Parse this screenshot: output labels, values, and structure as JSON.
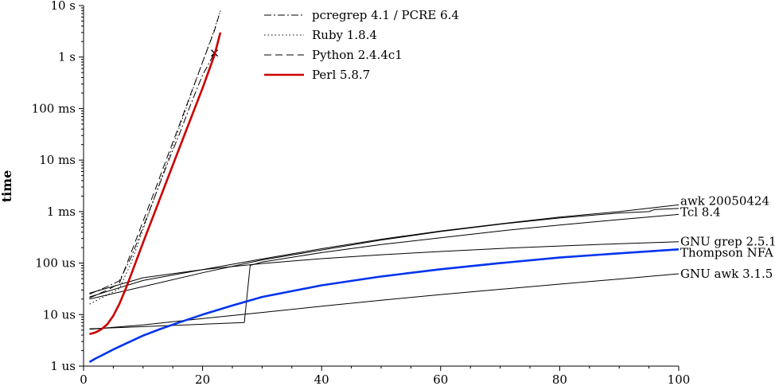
{
  "chart_data": {
    "type": "line",
    "xlabel": "",
    "ylabel": "time",
    "xlim": [
      0,
      100
    ],
    "y_scale": "log",
    "ylim_seconds": [
      1e-06,
      10
    ],
    "x_ticks": [
      0,
      20,
      40,
      60,
      80,
      100
    ],
    "y_ticks": [
      {
        "value": 1e-06,
        "label": "1 us"
      },
      {
        "value": 1e-05,
        "label": "10 us"
      },
      {
        "value": 0.0001,
        "label": "100 us"
      },
      {
        "value": 0.001,
        "label": "1 ms"
      },
      {
        "value": 0.01,
        "label": "10 ms"
      },
      {
        "value": 0.1,
        "label": "100 ms"
      },
      {
        "value": 1,
        "label": "1 s"
      },
      {
        "value": 10,
        "label": "10 s"
      }
    ],
    "grid": false,
    "legend": "top",
    "series": [
      {
        "name": "pcregrep 4.1 / PCRE 6.4",
        "style": "dashdot",
        "color": "#000000",
        "width": 1,
        "in_legend": true,
        "x": [
          1,
          4,
          6,
          8,
          10,
          12,
          14,
          16,
          18,
          20,
          22
        ],
        "y": [
          2.5e-05,
          3.5e-05,
          4.5e-05,
          0.00013,
          0.0005,
          0.002,
          0.008,
          0.03,
          0.12,
          0.45,
          1.2
        ],
        "end_marker": "x"
      },
      {
        "name": "Ruby 1.8.4",
        "style": "dotted",
        "color": "#000000",
        "width": 1,
        "in_legend": true,
        "x": [
          1,
          4,
          6,
          8,
          10,
          12,
          14,
          16,
          18,
          20,
          22,
          23
        ],
        "y": [
          1.6e-05,
          2.4e-05,
          3.2e-05,
          0.0001,
          0.00045,
          0.002,
          0.009,
          0.04,
          0.18,
          0.8,
          3.5,
          8
        ]
      },
      {
        "name": "Python 2.4.4c1",
        "style": "dashed",
        "color": "#000000",
        "width": 1,
        "in_legend": true,
        "x": [
          1,
          4,
          6,
          8,
          10,
          12,
          14,
          16,
          18,
          20,
          22,
          23
        ],
        "y": [
          2.1e-05,
          3e-05,
          4e-05,
          0.00016,
          0.00065,
          0.0026,
          0.011,
          0.045,
          0.19,
          0.8,
          3.3,
          8
        ]
      },
      {
        "name": "Perl 5.8.7",
        "style": "solid",
        "color": "#cc0000",
        "width": 2.6,
        "in_legend": true,
        "x": [
          1,
          2,
          3,
          4,
          5,
          6,
          7,
          8,
          10,
          12,
          14,
          16,
          18,
          20,
          22,
          23
        ],
        "y": [
          4.2e-06,
          4.5e-06,
          5.2e-06,
          6.5e-06,
          9.5e-06,
          1.6e-05,
          3e-05,
          6e-05,
          0.00025,
          0.001,
          0.004,
          0.016,
          0.063,
          0.25,
          1.1,
          3
        ]
      },
      {
        "name": "awk 20050424",
        "style": "solid",
        "color": "#000000",
        "width": 1,
        "x": [
          1,
          10,
          20,
          30,
          40,
          50,
          60,
          70,
          80,
          90,
          100
        ],
        "y": [
          2.2e-05,
          4.6e-05,
          7.5e-05,
          0.00012,
          0.00019,
          0.00029,
          0.00042,
          0.00058,
          0.00078,
          0.001,
          0.00135
        ]
      },
      {
        "name": "Tcl 8.4",
        "style": "solid",
        "color": "#000000",
        "width": 1,
        "x": [
          1,
          10,
          20,
          30,
          40,
          50,
          60,
          70,
          80,
          90,
          95,
          96,
          100
        ],
        "y": [
          2e-05,
          3.5e-05,
          6.5e-05,
          0.000115,
          0.00018,
          0.00028,
          0.00041,
          0.00057,
          0.00075,
          0.00094,
          0.001,
          0.0011,
          0.00115
        ]
      },
      {
        "name": "GNU grep 2.5.1",
        "style": "solid",
        "color": "#000000",
        "width": 1,
        "x": [
          1,
          10,
          20,
          30,
          40,
          50,
          60,
          70,
          80,
          90,
          100
        ],
        "y": [
          2.6e-05,
          5.2e-05,
          7.5e-05,
          9.8e-05,
          0.000122,
          0.000145,
          0.000168,
          0.000192,
          0.000215,
          0.000238,
          0.00026
        ]
      },
      {
        "name": "Thompson NFA",
        "style": "solid",
        "color": "#0033ee",
        "width": 2.6,
        "x": [
          1,
          2,
          3,
          5,
          7,
          10,
          13,
          16,
          20,
          25,
          30,
          40,
          50,
          60,
          70,
          80,
          90,
          100
        ],
        "y": [
          1.2e-06,
          1.4e-06,
          1.6e-06,
          2.1e-06,
          2.7e-06,
          3.9e-06,
          5.3e-06,
          7e-06,
          1e-05,
          1.5e-05,
          2.2e-05,
          3.7e-05,
          5.5e-05,
          7.6e-05,
          0.0001,
          0.000128,
          0.000155,
          0.000185
        ]
      },
      {
        "name": "GNU awk 3.1.5",
        "style": "solid",
        "color": "#000000",
        "width": 1,
        "x": [
          1,
          27,
          28,
          30,
          40,
          50,
          60,
          70,
          80,
          90,
          100
        ],
        "y": [
          5.3e-06,
          7e-06,
          9e-05,
          0.000105,
          0.00016,
          0.00023,
          0.00031,
          0.00042,
          0.00055,
          0.0007,
          0.00088
        ]
      },
      {
        "name": "",
        "style": "solid",
        "color": "#000000",
        "width": 1,
        "x": [
          1,
          10,
          20,
          30,
          40,
          50,
          60,
          70,
          80,
          90,
          100
        ],
        "y": [
          5.2e-06,
          6.3e-06,
          8.4e-06,
          1.1e-05,
          1.45e-05,
          1.9e-05,
          2.45e-05,
          3.1e-05,
          3.9e-05,
          4.9e-05,
          6.2e-05
        ]
      }
    ],
    "right_labels": [
      {
        "text": "awk 20050424",
        "y": 0.0016
      },
      {
        "text": "Tcl 8.4",
        "y": 0.00098
      },
      {
        "text": "GNU grep 2.5.1",
        "y": 0.00026
      },
      {
        "text": "Thompson NFA",
        "y": 0.00016
      },
      {
        "text": "GNU awk 3.1.5",
        "y": 6.2e-05
      }
    ]
  }
}
